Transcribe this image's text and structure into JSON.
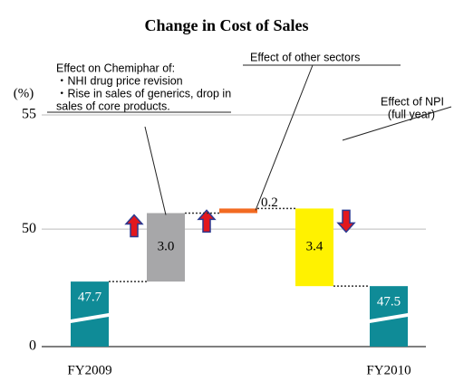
{
  "chart_data": {
    "type": "waterfall",
    "title": "Change in Cost of Sales",
    "y_unit": "(%)",
    "categories": [
      "FY2009",
      null,
      null,
      null,
      "FY2010"
    ],
    "values": [
      47.7,
      3.0,
      0.2,
      -3.4,
      47.5
    ],
    "value_labels": [
      "47.7",
      "3.0",
      "0.2",
      "3.4",
      "47.5"
    ],
    "colors": [
      "#0f8b97",
      "#a7a7a9",
      "#f26a21",
      "#fff200",
      "#0f8b97"
    ],
    "ylim": [
      0,
      55
    ],
    "yticks": [
      0,
      50,
      55
    ],
    "annotations": [
      {
        "lines": [
          "Effect on Chemiphar of:",
          "・NHI drug price revision",
          "・Rise in sales of generics, drop in",
          "  sales of core products."
        ]
      },
      {
        "lines": [
          "Effect of other sectors"
        ]
      },
      {
        "lines": [
          "Effect of NPI",
          "(full year)"
        ]
      }
    ]
  }
}
